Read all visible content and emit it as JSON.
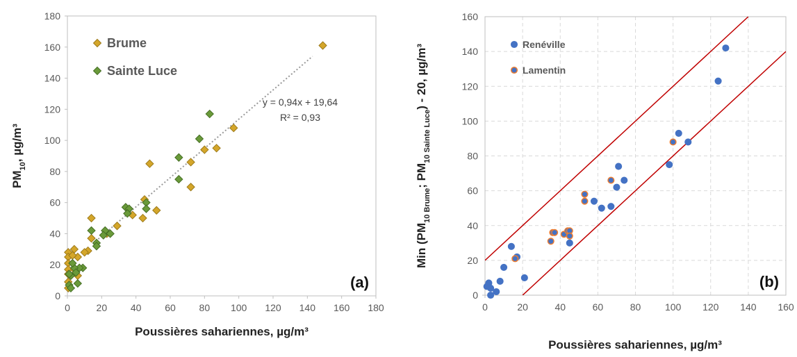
{
  "chart_data": [
    {
      "type": "scatter",
      "panel_label": "(a)",
      "xlabel": "Poussières sahariennes, µg/m³",
      "ylabel": [
        {
          "text": "PM"
        },
        {
          "text": "10",
          "sub": true
        },
        {
          "text": ", µg/m³"
        }
      ],
      "xlim": [
        0,
        180
      ],
      "xticks": [
        0,
        20,
        40,
        60,
        80,
        100,
        120,
        140,
        160,
        180
      ],
      "ylim": [
        0,
        180
      ],
      "yticks": [
        0,
        20,
        40,
        60,
        80,
        100,
        120,
        140,
        160,
        180
      ],
      "grid": false,
      "legend": "top-left",
      "marker": "diamond",
      "series": [
        {
          "name": "Brume",
          "color": "#d4a62a",
          "stroke": "#9c7a1a",
          "x": [
            149,
            97,
            87,
            80,
            72,
            48,
            72,
            52,
            45,
            44,
            38,
            29,
            23,
            14,
            14,
            12,
            10,
            4,
            6,
            6,
            0.5,
            0.5,
            0.5,
            0.5,
            0.5,
            0.5,
            0.5,
            3,
            4
          ],
          "values": [
            161,
            108,
            95,
            94,
            86,
            85,
            70,
            55,
            62,
            50,
            52,
            45,
            40,
            50,
            37,
            29,
            28,
            30,
            25,
            13,
            28,
            25,
            21,
            17,
            14,
            9,
            5,
            26,
            17
          ]
        },
        {
          "name": "Sainte Luce",
          "color": "#6a9a3a",
          "stroke": "#456e24",
          "x": [
            83,
            77,
            65,
            65,
            46,
            46,
            34,
            36,
            35,
            25,
            22,
            21,
            17,
            17,
            14,
            9,
            7,
            6,
            4,
            2,
            1,
            2,
            3,
            5,
            1
          ],
          "values": [
            117,
            101,
            89,
            75,
            60,
            56,
            57,
            56,
            53,
            40,
            42,
            39,
            34,
            32,
            42,
            18,
            18,
            8,
            18,
            13,
            7,
            5,
            21,
            15,
            14
          ]
        }
      ],
      "trendline": {
        "slope": 0.94,
        "intercept": 19.64,
        "x": [
          18,
          143
        ],
        "color": "#999999",
        "equation": "y = 0,94x + 19,64",
        "r2": "R² = 0,93"
      }
    },
    {
      "type": "scatter",
      "panel_label": "(b)",
      "xlabel": "Poussières sahariennes, µg/m³",
      "ylabel": [
        {
          "text": "Min (PM"
        },
        {
          "text": "10 Brume",
          "sub": true
        },
        {
          "text": "; PM"
        },
        {
          "text": "10 Sainte Luce",
          "sub": true
        },
        {
          "text": ") - 20, µg/m³"
        }
      ],
      "xlim": [
        0,
        160
      ],
      "xticks": [
        0,
        20,
        40,
        60,
        80,
        100,
        120,
        140,
        160
      ],
      "ylim": [
        0,
        160
      ],
      "yticks": [
        0,
        20,
        40,
        60,
        80,
        100,
        120,
        140,
        160
      ],
      "grid": true,
      "legend": "top-left",
      "marker": "circle",
      "series": [
        {
          "name": "Renéville",
          "color": "#4472c4",
          "stroke": "#4472c4",
          "x": [
            128,
            124,
            103,
            108,
            98,
            71,
            74,
            70,
            58,
            62,
            67,
            45,
            14,
            17,
            10,
            21,
            8,
            2,
            1,
            3,
            6,
            3
          ],
          "values": [
            142,
            123,
            93,
            88,
            75,
            74,
            66,
            62,
            54,
            50,
            51,
            30,
            28,
            22,
            16,
            10,
            8,
            7,
            5,
            4,
            2,
            0
          ]
        },
        {
          "name": "Lamentin",
          "color": "#4472c4",
          "stroke": "#ed7d31",
          "x": [
            16,
            35,
            36,
            37,
            42,
            44,
            45,
            45,
            53,
            53,
            67,
            100
          ],
          "values": [
            21,
            31,
            36,
            36,
            35,
            37,
            37,
            34,
            58,
            54,
            66,
            88
          ]
        }
      ],
      "reference_lines": [
        {
          "slope": 1,
          "intercept": 20,
          "color": "#c00000"
        },
        {
          "slope": 1,
          "intercept": -20,
          "color": "#c00000"
        }
      ]
    }
  ]
}
